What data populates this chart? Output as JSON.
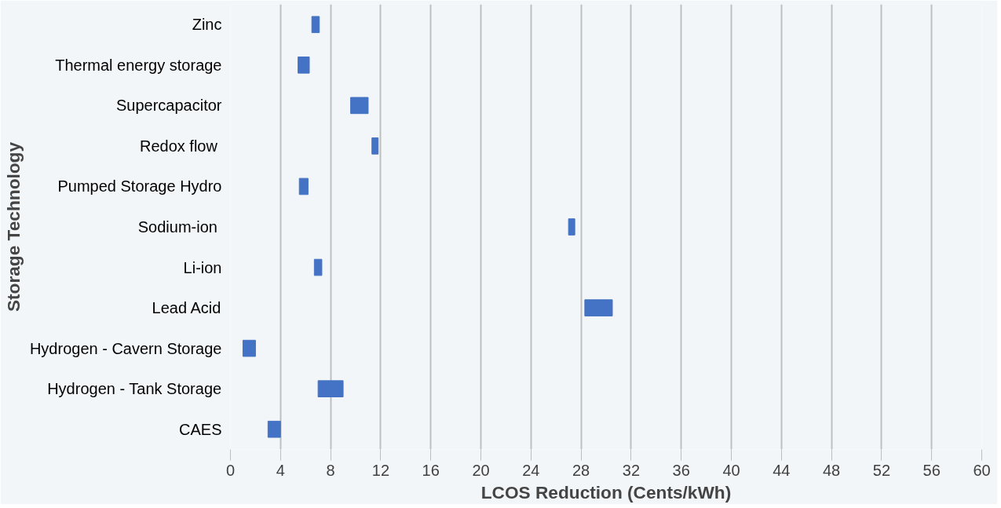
{
  "chart_data": {
    "type": "bar",
    "orientation": "horizontal",
    "categories": [
      "Zinc",
      "Thermal energy storage",
      "Supercapacitor",
      "Redox flow ",
      "Pumped Storage Hydro",
      "Sodium-ion ",
      "Li-ion",
      "Lead Acid",
      "Hydrogen - Cavern Storage",
      "Hydrogen - Tank Storage",
      "CAES"
    ],
    "base": [
      6.5,
      5.4,
      9.6,
      11.3,
      5.5,
      27.0,
      6.7,
      28.3,
      1.0,
      7.0,
      3.0
    ],
    "values": [
      0.6,
      0.9,
      1.4,
      0.5,
      0.7,
      0.5,
      0.6,
      2.2,
      1.0,
      2.0,
      1.0
    ],
    "color": "#4472c4",
    "xlim": [
      0,
      60
    ],
    "xticks": [
      0,
      4,
      8,
      12,
      16,
      20,
      24,
      28,
      32,
      36,
      40,
      44,
      48,
      52,
      56,
      60
    ],
    "xlabel": "LCOS Reduction (Cents/kWh)",
    "ylabel": "Storage Technology",
    "grid": "x"
  }
}
